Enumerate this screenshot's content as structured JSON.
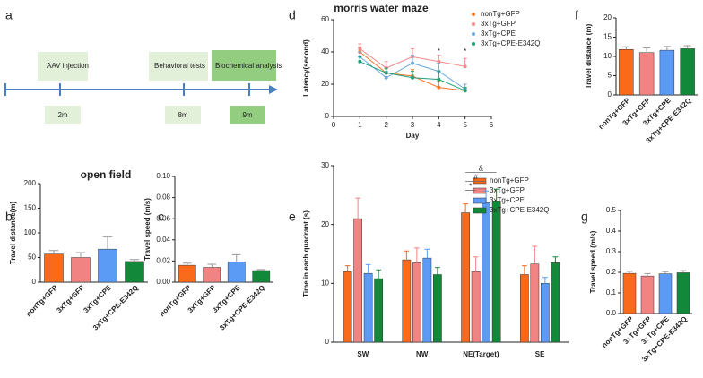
{
  "timeline": {
    "panel": "a",
    "events": [
      {
        "label": "AAV injection",
        "time": "2m"
      },
      {
        "label": "Behavioral tests",
        "time": "8m"
      },
      {
        "label": "Biochemical analysis",
        "time": "9m"
      }
    ]
  },
  "chart_data": [
    {
      "panel": "b",
      "type": "bar",
      "title": "open field",
      "ylabel": "Travel distance(m)",
      "categories": [
        "nonTg+GFP",
        "3xTg+GFP",
        "3xTg+CPE",
        "3xTg+CPE-E342Q"
      ],
      "values": [
        57,
        50,
        67,
        42
      ],
      "errors": [
        7,
        10,
        25,
        4
      ],
      "colors": [
        "#f96a1b",
        "#f28383",
        "#5b9bf5",
        "#12893a"
      ],
      "ylim": [
        0,
        200
      ],
      "yticks": [
        0,
        50,
        100,
        150,
        200
      ]
    },
    {
      "panel": "c",
      "type": "bar",
      "ylabel": "Travel speed (m/s)",
      "categories": [
        "nonTg+GFP",
        "3xTg+GFP",
        "3xTg+CPE",
        "3xTg+CPE-E342Q"
      ],
      "values": [
        0.016,
        0.014,
        0.019,
        0.011
      ],
      "errors": [
        0.002,
        0.003,
        0.007,
        0.001
      ],
      "colors": [
        "#f96a1b",
        "#f28383",
        "#5b9bf5",
        "#12893a"
      ],
      "ylim": [
        0,
        0.1
      ],
      "yticks": [
        {
          "value": 0,
          "label": "0.00"
        },
        0.02,
        0.04,
        0.06,
        0.08,
        {
          "value": 0.1,
          "label": "0.10"
        }
      ]
    },
    {
      "panel": "d",
      "type": "line",
      "title": "morris water maze",
      "xlabel": "Day",
      "ylabel": "Latency(second)",
      "x": [
        1,
        2,
        3,
        4,
        5
      ],
      "series": [
        {
          "name": "nonTg+GFP",
          "color": "#f4772a",
          "values": [
            40,
            27,
            25,
            18,
            16
          ],
          "errors": [
            3,
            3,
            4,
            4,
            2
          ]
        },
        {
          "name": "3xTg+GFP",
          "color": "#f28b8b",
          "values": [
            42,
            30,
            37,
            34,
            31
          ],
          "errors": [
            3,
            4,
            5,
            4,
            5
          ]
        },
        {
          "name": "3xTg+CPE",
          "color": "#6fa8dc",
          "values": [
            37,
            24,
            33,
            28,
            17
          ],
          "errors": [
            3,
            4,
            5,
            5,
            3
          ]
        },
        {
          "name": "3xTg+CPE-E342Q",
          "color": "#21a07a",
          "values": [
            34,
            27,
            24,
            23,
            16
          ],
          "errors": [
            3,
            3,
            4,
            5,
            2
          ]
        }
      ],
      "annotations": [
        "*",
        "*"
      ],
      "xlim": [
        0,
        6
      ],
      "xticks": [
        0,
        1,
        2,
        3,
        4,
        5,
        6
      ],
      "ylim": [
        0,
        60
      ],
      "yticks": [
        0,
        20,
        40,
        60
      ]
    },
    {
      "panel": "e",
      "type": "grouped_bar",
      "ylabel": "Time in each quadrant (s)",
      "categories": [
        "SW",
        "NW",
        "NE(Target)",
        "SE"
      ],
      "series": [
        {
          "name": "nonTg+GFP",
          "color": "#f96a1b",
          "values": [
            12,
            14,
            22,
            11.5
          ],
          "errors": [
            1,
            1.5,
            1.5,
            1.5
          ]
        },
        {
          "name": "3xTg+GFP",
          "color": "#f28383",
          "values": [
            21,
            13.5,
            12,
            13.3
          ],
          "errors": [
            3.5,
            2.5,
            2.5,
            3
          ]
        },
        {
          "name": "3xTg+CPE",
          "color": "#5b9bf5",
          "values": [
            11.7,
            14.3,
            23.7,
            10
          ],
          "errors": [
            1.5,
            1.5,
            2,
            1
          ]
        },
        {
          "name": "3xTg+CPE-E342Q",
          "color": "#12893a",
          "values": [
            10.8,
            11.5,
            24,
            13.5
          ],
          "errors": [
            1.5,
            1.2,
            2,
            1
          ]
        }
      ],
      "annotations": [
        "*",
        "#",
        "&"
      ],
      "ylim": [
        0,
        30
      ],
      "yticks": [
        0,
        10,
        20,
        30
      ]
    },
    {
      "panel": "f",
      "type": "bar",
      "ylabel": "Travel distance (m)",
      "categories": [
        "nonTg+GFP",
        "3xTg+GFP",
        "3xTg+CPE",
        "3xTg+CPE-E342Q"
      ],
      "values": [
        11.8,
        11,
        11.6,
        12
      ],
      "errors": [
        0.7,
        1.2,
        1,
        0.8
      ],
      "colors": [
        "#f96a1b",
        "#f28383",
        "#5b9bf5",
        "#12893a"
      ],
      "ylim": [
        0,
        20
      ],
      "yticks": [
        0,
        5,
        10,
        15,
        20
      ]
    },
    {
      "panel": "g",
      "type": "bar",
      "ylabel": "Travel speed (m/s)",
      "categories": [
        "nonTg+GFP",
        "3xTg+GFP",
        "3xTg+CPE",
        "3xTg+CPE-E342Q"
      ],
      "values": [
        0.195,
        0.182,
        0.193,
        0.198
      ],
      "errors": [
        0.01,
        0.012,
        0.01,
        0.01
      ],
      "colors": [
        "#f96a1b",
        "#f28383",
        "#5b9bf5",
        "#12893a"
      ],
      "ylim": [
        0,
        0.5
      ],
      "yticks": [
        {
          "value": 0,
          "label": "0.0"
        },
        0.1,
        0.2,
        0.3,
        0.4,
        0.5
      ]
    }
  ]
}
